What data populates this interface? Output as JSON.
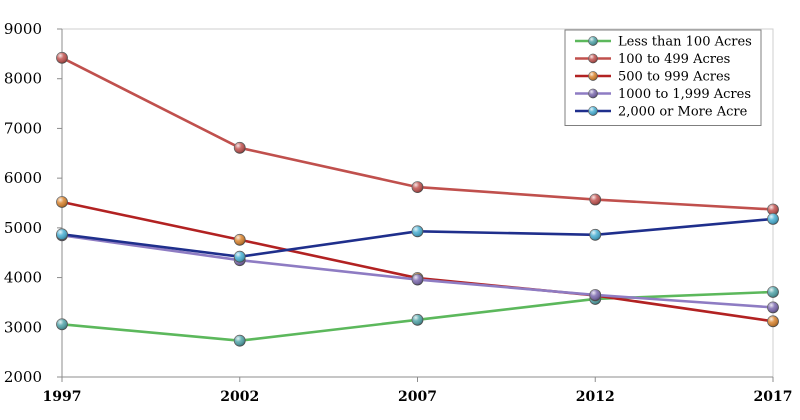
{
  "chart_data": {
    "type": "line",
    "title": "",
    "xlabel": "",
    "ylabel": "",
    "categories": [
      "1997",
      "2002",
      "2007",
      "2012",
      "2017"
    ],
    "ylim": [
      2000,
      9000
    ],
    "yticks": [
      2000,
      3000,
      4000,
      5000,
      6000,
      7000,
      8000,
      9000
    ],
    "grid": false,
    "legend_position": "top-right",
    "series": [
      {
        "name": "Less than 100 Acres",
        "line_color": "#5CB85C",
        "marker_color": "#4FA3A8",
        "values": [
          3060,
          2730,
          3150,
          3570,
          3710
        ]
      },
      {
        "name": "100 to 499 Acres",
        "line_color": "#C0504D",
        "marker_color": "#C0504D",
        "values": [
          8420,
          6610,
          5820,
          5570,
          5370
        ]
      },
      {
        "name": "500 to 999 Acres",
        "line_color": "#B22222",
        "marker_color": "#D9822B",
        "values": [
          5520,
          4760,
          3990,
          3640,
          3120
        ]
      },
      {
        "name": "1000 to 1,999 Acres",
        "line_color": "#8E7CC3",
        "marker_color": "#7B68AE",
        "values": [
          4850,
          4350,
          3960,
          3650,
          3400
        ]
      },
      {
        "name": "2,000 or More Acre",
        "line_color": "#1F2F8C",
        "marker_color": "#46AED2",
        "values": [
          4870,
          4420,
          4930,
          4860,
          5180
        ]
      }
    ]
  }
}
